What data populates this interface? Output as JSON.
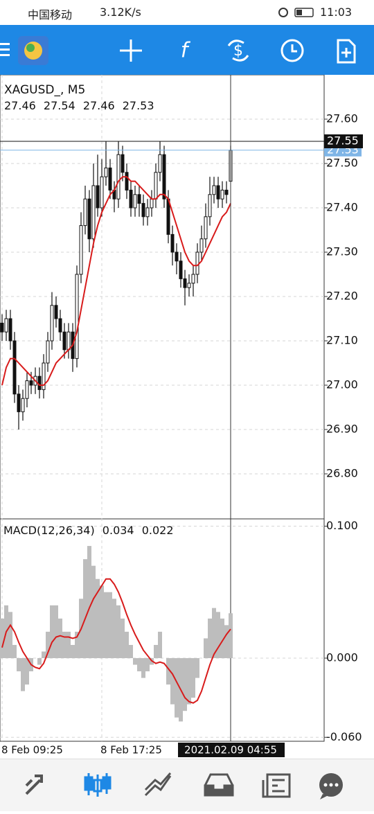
{
  "status_bar": {
    "carrier": "中国移动",
    "speed": "3.12K/s",
    "time": "11:03"
  },
  "chart_data": [
    {
      "type": "candlestick",
      "title": "XAGUSD_, M5",
      "open": [
        27.14,
        27.12,
        27.15,
        27.1,
        26.98,
        26.94,
        26.97,
        27.01,
        27.0,
        27.02,
        26.99,
        27.05,
        27.1,
        27.18,
        27.15,
        27.12,
        27.08,
        27.12,
        27.06,
        27.25,
        27.36,
        27.42,
        27.33,
        27.45,
        27.4,
        27.47,
        27.49,
        27.44,
        27.42,
        27.52,
        27.48,
        27.44,
        27.4,
        27.43,
        27.41,
        27.38,
        27.4,
        27.42,
        27.48,
        27.52,
        27.42,
        27.34,
        27.3,
        27.28,
        27.24,
        27.22,
        27.23,
        27.25,
        27.3,
        27.33,
        27.38,
        27.43,
        27.45,
        27.42,
        27.44,
        27.46
      ],
      "high": [
        27.16,
        27.17,
        27.17,
        27.12,
        27.0,
        26.99,
        27.03,
        27.03,
        27.04,
        27.04,
        27.07,
        27.12,
        27.21,
        27.2,
        27.17,
        27.14,
        27.14,
        27.14,
        27.27,
        27.39,
        27.45,
        27.44,
        27.5,
        27.52,
        27.51,
        27.55,
        27.51,
        27.46,
        27.55,
        27.54,
        27.5,
        27.46,
        27.45,
        27.45,
        27.43,
        27.42,
        27.44,
        27.5,
        27.55,
        27.54,
        27.44,
        27.36,
        27.32,
        27.3,
        27.26,
        27.25,
        27.27,
        27.32,
        27.36,
        27.41,
        27.47,
        27.47,
        27.47,
        27.46,
        27.46,
        27.54
      ],
      "low": [
        27.1,
        27.1,
        27.08,
        26.96,
        26.9,
        26.92,
        26.95,
        26.98,
        26.98,
        26.97,
        26.97,
        27.03,
        27.08,
        27.13,
        27.1,
        27.06,
        27.06,
        27.03,
        27.04,
        27.23,
        27.34,
        27.3,
        27.31,
        27.38,
        27.38,
        27.45,
        27.42,
        27.39,
        27.4,
        27.46,
        27.42,
        27.38,
        27.38,
        27.38,
        27.36,
        27.36,
        27.38,
        27.4,
        27.46,
        27.4,
        27.32,
        27.27,
        27.25,
        27.22,
        27.18,
        27.2,
        27.2,
        27.23,
        27.28,
        27.31,
        27.36,
        27.41,
        27.4,
        27.4,
        27.41,
        27.46
      ],
      "close": [
        27.12,
        27.15,
        27.1,
        26.98,
        26.94,
        26.97,
        27.01,
        27.0,
        27.02,
        26.99,
        27.05,
        27.1,
        27.18,
        27.15,
        27.12,
        27.08,
        27.12,
        27.06,
        27.25,
        27.36,
        27.42,
        27.33,
        27.45,
        27.4,
        27.47,
        27.49,
        27.44,
        27.42,
        27.52,
        27.48,
        27.44,
        27.4,
        27.43,
        27.41,
        27.38,
        27.4,
        27.42,
        27.48,
        27.52,
        27.42,
        27.34,
        27.3,
        27.28,
        27.24,
        27.22,
        27.23,
        27.25,
        27.3,
        27.33,
        27.38,
        27.43,
        27.45,
        27.42,
        27.44,
        27.43,
        27.53
      ],
      "moving_average": {
        "color": "#d81b1b",
        "values": [
          27.0,
          27.04,
          27.06,
          27.06,
          27.05,
          27.04,
          27.03,
          27.02,
          27.01,
          27.0,
          27.0,
          27.01,
          27.03,
          27.05,
          27.06,
          27.07,
          27.08,
          27.09,
          27.12,
          27.17,
          27.22,
          27.27,
          27.32,
          27.36,
          27.39,
          27.41,
          27.43,
          27.44,
          27.46,
          27.47,
          27.47,
          27.46,
          27.46,
          27.45,
          27.44,
          27.43,
          27.42,
          27.42,
          27.43,
          27.43,
          27.42,
          27.39,
          27.36,
          27.33,
          27.3,
          27.28,
          27.27,
          27.27,
          27.28,
          27.3,
          27.32,
          27.34,
          27.36,
          27.38,
          27.39,
          27.41
        ]
      },
      "ylim": [
        26.7,
        27.7
      ],
      "yticks": [
        {
          "value": 26.8,
          "label": "26.80"
        },
        {
          "value": 26.9,
          "label": "26.90"
        },
        {
          "value": 27.0,
          "label": "27.00"
        },
        {
          "value": 27.1,
          "label": "27.10"
        },
        {
          "value": 27.2,
          "label": "27.20"
        },
        {
          "value": 27.3,
          "label": "27.30"
        },
        {
          "value": 27.4,
          "label": "27.40"
        },
        {
          "value": 27.5,
          "label": "27.50"
        },
        {
          "value": 27.6,
          "label": "27.60"
        }
      ],
      "crosshair_price": {
        "value": 27.55,
        "label": "27.55"
      },
      "bid": {
        "value": 27.53,
        "label": "27.53"
      },
      "x_ticks": [
        {
          "index": 0,
          "label": "8 Feb 09:25"
        },
        {
          "index": 24,
          "label": "8 Feb 17:25"
        }
      ],
      "crosshair_time": {
        "index": 55,
        "label": "2021.02.09 04:55"
      },
      "grid": true
    },
    {
      "type": "macd",
      "title": "MACD(12,26,34)",
      "histogram": {
        "color": "#bdbdbd",
        "values": [
          0.03,
          0.04,
          0.035,
          0.01,
          -0.01,
          -0.025,
          -0.02,
          -0.01,
          0.0,
          -0.005,
          0.005,
          0.02,
          0.04,
          0.04,
          0.03,
          0.02,
          0.02,
          0.01,
          0.02,
          0.045,
          0.075,
          0.085,
          0.07,
          0.06,
          0.055,
          0.05,
          0.05,
          0.045,
          0.04,
          0.03,
          0.02,
          0.01,
          -0.005,
          -0.01,
          -0.015,
          -0.01,
          -0.005,
          0.01,
          0.02,
          0.0,
          -0.02,
          -0.035,
          -0.045,
          -0.048,
          -0.04,
          -0.035,
          -0.03,
          -0.015,
          0.0,
          0.015,
          0.03,
          0.038,
          0.035,
          0.03,
          0.025,
          0.034
        ]
      },
      "signal": {
        "color": "#d81b1b",
        "values": [
          0.008,
          0.02,
          0.025,
          0.02,
          0.012,
          0.005,
          0.0,
          -0.005,
          -0.007,
          -0.008,
          -0.004,
          0.004,
          0.012,
          0.016,
          0.017,
          0.016,
          0.016,
          0.015,
          0.016,
          0.022,
          0.03,
          0.038,
          0.045,
          0.05,
          0.055,
          0.06,
          0.06,
          0.056,
          0.05,
          0.042,
          0.033,
          0.025,
          0.018,
          0.012,
          0.006,
          0.002,
          -0.002,
          -0.004,
          -0.003,
          -0.004,
          -0.008,
          -0.012,
          -0.018,
          -0.024,
          -0.03,
          -0.033,
          -0.034,
          -0.032,
          -0.025,
          -0.015,
          -0.005,
          0.003,
          0.008,
          0.013,
          0.018,
          0.022
        ]
      },
      "ylim": [
        -0.063,
        0.105
      ],
      "yticks": [
        {
          "value": 0.1,
          "label": "0.100"
        },
        {
          "value": 0,
          "label": "0.000"
        },
        {
          "value": -0.06,
          "label": "-0.060"
        }
      ],
      "grid": true
    }
  ]
}
